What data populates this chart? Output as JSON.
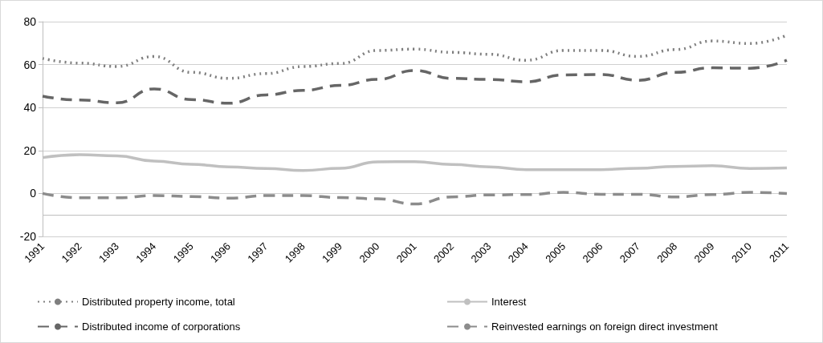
{
  "chart_data": {
    "type": "line",
    "categories": [
      "1991",
      "1992",
      "1993",
      "1994",
      "1995",
      "1996",
      "1997",
      "1998",
      "1999",
      "2000",
      "2001",
      "2002",
      "2003",
      "2004",
      "2005",
      "2006",
      "2007",
      "2008",
      "2009",
      "2010",
      "2011"
    ],
    "series": [
      {
        "name": "Distributed property income, total",
        "color": "#7f7f7f",
        "line_style": "dotted",
        "values": [
          62.9,
          60.7,
          59.1,
          63.8,
          56.4,
          53.6,
          55.8,
          59.1,
          60.5,
          66.6,
          67.2,
          65.7,
          64.8,
          62,
          66.6,
          66.6,
          63.8,
          67,
          71,
          69.8,
          73.7
        ]
      },
      {
        "name": "Distributed income of corporations",
        "color": "#666666",
        "line_style": "dashed",
        "values": [
          45.3,
          43.5,
          42.2,
          48.7,
          43.7,
          42,
          45.9,
          48,
          50.3,
          53.1,
          57.3,
          53.6,
          53.1,
          52,
          55.2,
          55.4,
          52.7,
          56.4,
          58.5,
          58.3,
          62
        ]
      },
      {
        "name": "Interest",
        "color": "#c0c0c0",
        "line_style": "solid",
        "values": [
          16.7,
          18.1,
          17.5,
          15.1,
          13.6,
          12.4,
          11.6,
          10.7,
          11.7,
          14.7,
          14.8,
          13.5,
          12.4,
          11.1,
          11.1,
          11.1,
          11.7,
          12.6,
          12.9,
          11.6,
          11.9
        ]
      },
      {
        "name": "Reinvested earnings on foreign direct investment",
        "color": "#8c8c8c",
        "line_style": "dashed",
        "values": [
          0,
          -2,
          -2,
          -1,
          -1.4,
          -2.2,
          -1,
          -1,
          -1.9,
          -2.5,
          -4.9,
          -1.6,
          -0.7,
          -0.5,
          0.5,
          -0.4,
          -0.4,
          -1.6,
          -0.5,
          0.5,
          0
        ]
      }
    ],
    "ylim": [
      -20,
      80
    ],
    "yticks": [
      -20,
      0,
      20,
      40,
      60,
      80
    ],
    "ref_lines": [
      {
        "axis": "y",
        "value": -10,
        "label": null,
        "color": "#bfbfbf"
      }
    ],
    "grid": "y",
    "legend": "bottom",
    "marker": "none"
  }
}
